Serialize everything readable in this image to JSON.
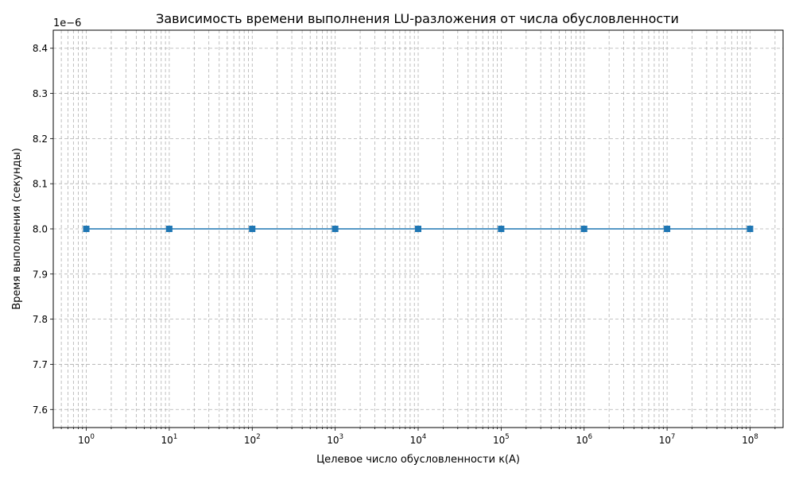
{
  "chart_data": {
    "type": "line",
    "title": "Зависимость времени выполнения LU-разложения от числа обусловленности",
    "xlabel": "Целевое число обусловленности κ(A)",
    "ylabel": "Время выполнения (секунды)",
    "x_scale": "log",
    "xlim": [
      0.4,
      250000000
    ],
    "ylim": [
      7.56,
      8.44
    ],
    "y_multiplier_label": "1e−6",
    "x_ticks": [
      {
        "value": 1,
        "base": "10",
        "exp": "0"
      },
      {
        "value": 10,
        "base": "10",
        "exp": "1"
      },
      {
        "value": 100,
        "base": "10",
        "exp": "2"
      },
      {
        "value": 1000,
        "base": "10",
        "exp": "3"
      },
      {
        "value": 10000,
        "base": "10",
        "exp": "4"
      },
      {
        "value": 100000,
        "base": "10",
        "exp": "5"
      },
      {
        "value": 1000000,
        "base": "10",
        "exp": "6"
      },
      {
        "value": 10000000,
        "base": "10",
        "exp": "7"
      },
      {
        "value": 100000000,
        "base": "10",
        "exp": "8"
      }
    ],
    "y_ticks": [
      7.6,
      7.7,
      7.8,
      7.9,
      8.0,
      8.1,
      8.2,
      8.3,
      8.4
    ],
    "y_tick_labels": [
      "7.6",
      "7.7",
      "7.8",
      "7.9",
      "8.0",
      "8.1",
      "8.2",
      "8.3",
      "8.4"
    ],
    "grid": true,
    "series": [
      {
        "color": "#1f77b4",
        "marker": "square",
        "x": [
          1,
          10,
          100,
          1000,
          10000,
          100000,
          1000000,
          10000000,
          100000000
        ],
        "y": [
          8.0,
          8.0,
          8.0,
          8.0,
          8.0,
          8.0,
          8.0,
          8.0,
          8.0
        ]
      }
    ]
  }
}
